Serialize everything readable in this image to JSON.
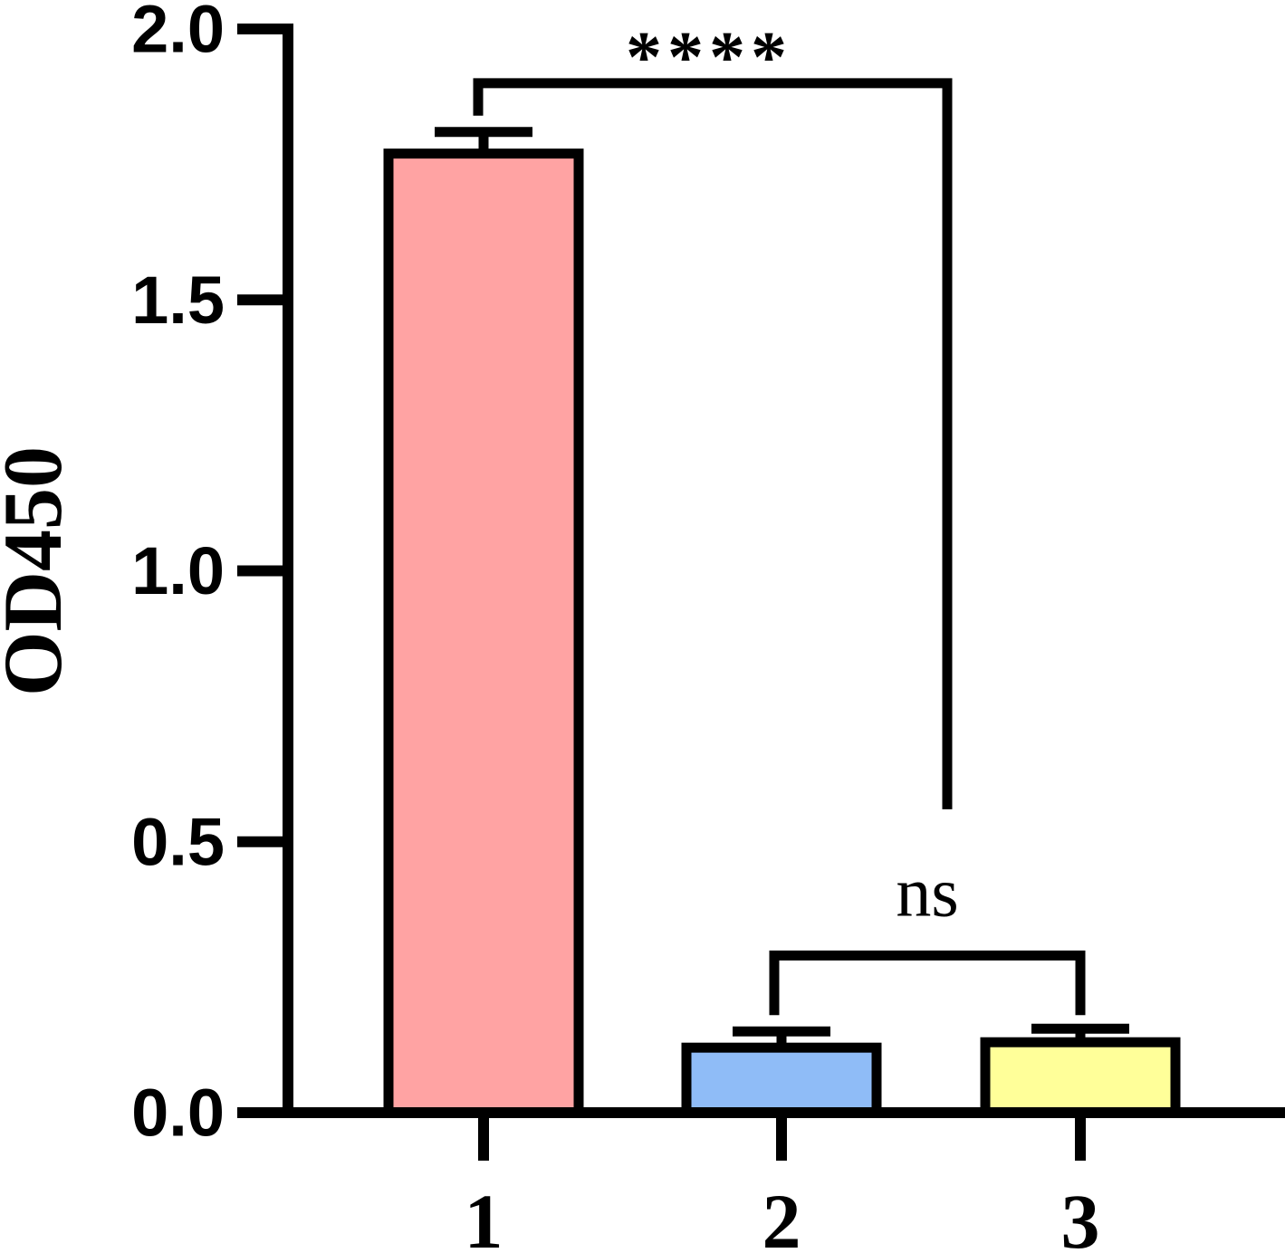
{
  "chart_data": {
    "type": "bar",
    "title": "",
    "xlabel": "",
    "ylabel": "OD450",
    "ylim": [
      0,
      2.0
    ],
    "yticks": [
      "0.0",
      "0.5",
      "1.0",
      "1.5",
      "2.0"
    ],
    "yticks_values": [
      0,
      0.5,
      1.0,
      1.5,
      2.0
    ],
    "categories": [
      "1",
      "2",
      "3"
    ],
    "values": [
      1.77,
      0.12,
      0.13
    ],
    "errors": [
      0.04,
      0.03,
      0.025
    ],
    "colors": [
      "#ffa3a3",
      "#8fbcf7",
      "#ffff99"
    ],
    "grid": false,
    "significance": [
      {
        "from": "1",
        "to": "2",
        "label": "****",
        "level": 1.9,
        "right_drop": 0.56,
        "left_drop": 1.84
      },
      {
        "from": "2",
        "to": "3",
        "label": "ns",
        "level": 0.29,
        "left_drop": 0.18,
        "right_drop": 0.18
      }
    ]
  }
}
